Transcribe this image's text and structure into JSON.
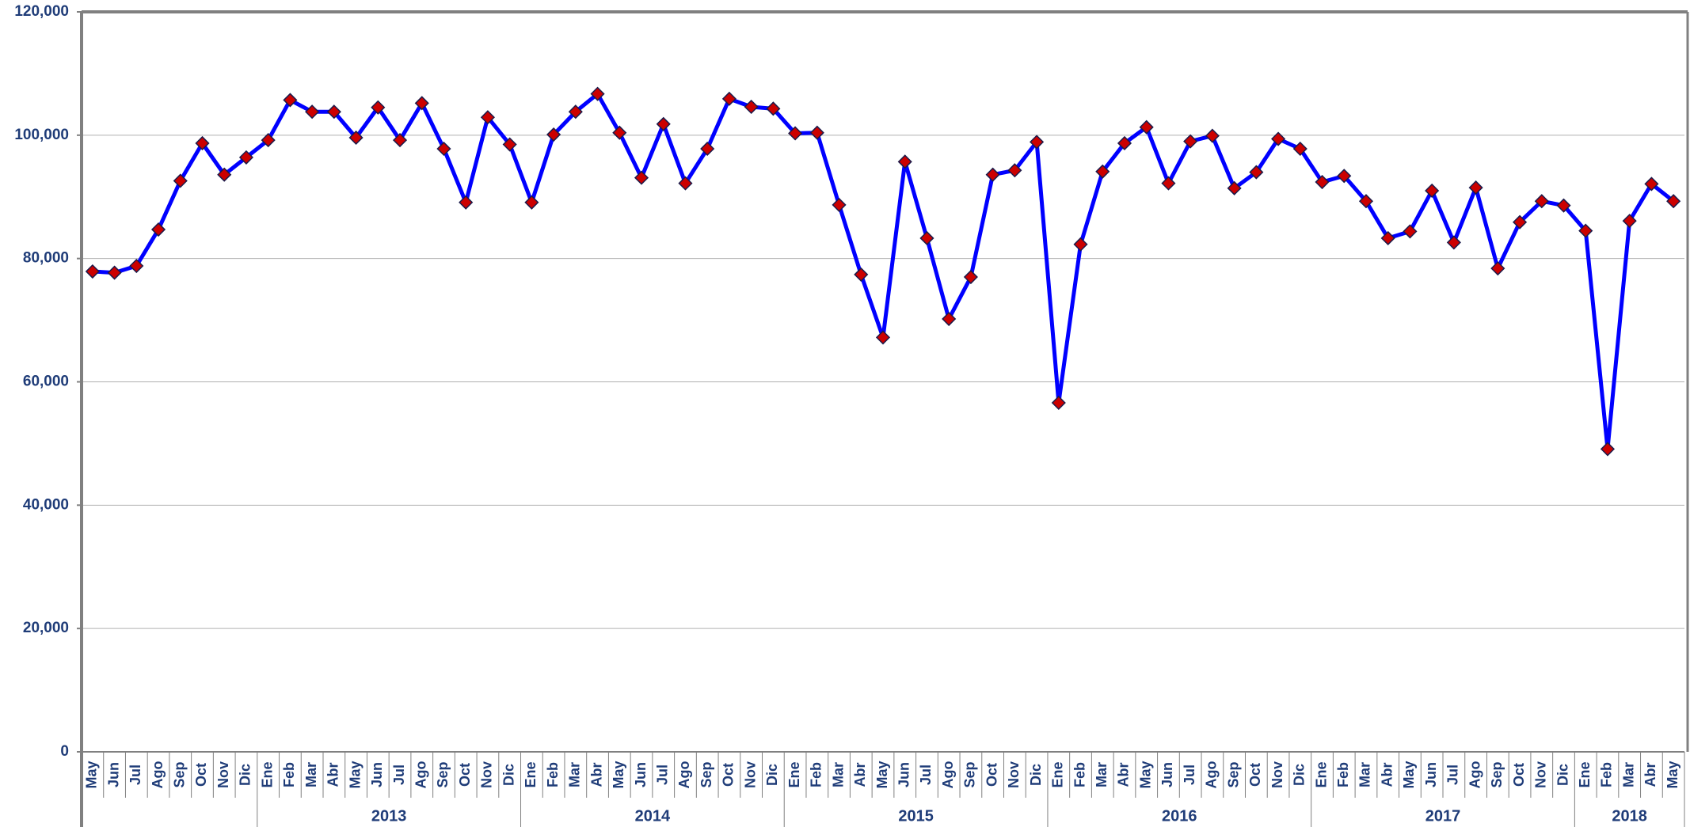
{
  "chart_data": {
    "type": "line",
    "categories": [
      "May",
      "Jun",
      "Jul",
      "Ago",
      "Sep",
      "Oct",
      "Nov",
      "Dic",
      "Ene",
      "Feb",
      "Mar",
      "Abr",
      "May",
      "Jun",
      "Jul",
      "Ago",
      "Sep",
      "Oct",
      "Nov",
      "Dic",
      "Ene",
      "Feb",
      "Mar",
      "Abr",
      "May",
      "Jun",
      "Jul",
      "Ago",
      "Sep",
      "Oct",
      "Nov",
      "Dic",
      "Ene",
      "Feb",
      "Mar",
      "Abr",
      "May",
      "Jun",
      "Jul",
      "Ago",
      "Sep",
      "Oct",
      "Nov",
      "Dic",
      "Ene",
      "Feb",
      "Mar",
      "Abr",
      "May",
      "Jun",
      "Jul",
      "Ago",
      "Sep",
      "Oct",
      "Nov",
      "Dic",
      "Ene",
      "Feb",
      "Mar",
      "Abr",
      "May",
      "Jun",
      "Jul",
      "Ago",
      "Sep",
      "Oct",
      "Nov",
      "Dic",
      "Ene",
      "Feb",
      "Mar",
      "Abr",
      "May"
    ],
    "groups": [
      null,
      null,
      null,
      null,
      null,
      null,
      null,
      null,
      "2013",
      "2013",
      "2013",
      "2013",
      "2013",
      "2013",
      "2013",
      "2013",
      "2013",
      "2013",
      "2013",
      "2013",
      "2014",
      "2014",
      "2014",
      "2014",
      "2014",
      "2014",
      "2014",
      "2014",
      "2014",
      "2014",
      "2014",
      "2014",
      "2015",
      "2015",
      "2015",
      "2015",
      "2015",
      "2015",
      "2015",
      "2015",
      "2015",
      "2015",
      "2015",
      "2015",
      "2016",
      "2016",
      "2016",
      "2016",
      "2016",
      "2016",
      "2016",
      "2016",
      "2016",
      "2016",
      "2016",
      "2016",
      "2017",
      "2017",
      "2017",
      "2017",
      "2017",
      "2017",
      "2017",
      "2017",
      "2017",
      "2017",
      "2017",
      "2017",
      "2018",
      "2018",
      "2018",
      "2018",
      "2018"
    ],
    "series": [
      {
        "color": "#0000ff",
        "marker_color": "#cc0000",
        "values": [
          77900,
          77700,
          78800,
          84700,
          92600,
          98700,
          93600,
          96400,
          99200,
          105700,
          103800,
          103800,
          99600,
          104500,
          99200,
          105200,
          97800,
          89100,
          102900,
          98500,
          89100,
          100100,
          103800,
          106700,
          100400,
          93100,
          101800,
          92200,
          97800,
          105900,
          104600,
          104300,
          100300,
          100400,
          88700,
          77400,
          67200,
          95700,
          83300,
          70200,
          77000,
          93600,
          94300,
          98900,
          56600,
          82300,
          94100,
          98700,
          101300,
          92200,
          99000,
          99900,
          91400,
          94000,
          99400,
          97800,
          92400,
          93400,
          89300,
          83300,
          84400,
          91000,
          82600,
          91500,
          78400,
          85900,
          89300,
          88600,
          84500,
          49100,
          86100,
          92100,
          89300
        ]
      }
    ],
    "ylim": [
      0,
      120000
    ],
    "yticks": [
      0,
      {
        "value": 20000,
        "label": "20,000"
      },
      {
        "value": 40000,
        "label": "40,000"
      },
      {
        "value": 60000,
        "label": "60,000"
      },
      {
        "value": 80000,
        "label": "80,000"
      },
      {
        "value": 100000,
        "label": "100,000"
      },
      {
        "value": 120000,
        "label": "120,000"
      }
    ],
    "grid": true
  }
}
